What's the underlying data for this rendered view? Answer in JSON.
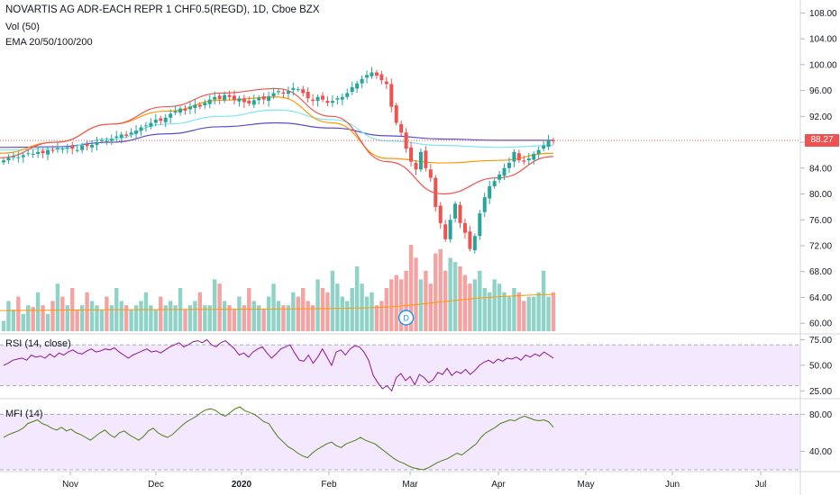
{
  "header": {
    "symbol_line": "NOVARTIS AG ADR-EACH REPR 1 CHF0.5(REGD), 1D, Cboe BZX",
    "vol_label": "Vol (50)",
    "ema_label": "EMA 20/50/100/200"
  },
  "rsi_panel": {
    "label": "RSI (14, close)"
  },
  "mfi_panel": {
    "label": "MFI (14)"
  },
  "last_price": {
    "value": "88.27",
    "color": "#ef5350"
  },
  "dividend_marker": {
    "label": "D"
  },
  "colors": {
    "up": "#26a69a",
    "down": "#ef5350",
    "vol_up": "#8fd3c8",
    "vol_down": "#f4a3a3",
    "ema20": "#ef5350",
    "ema50": "#ff9800",
    "ema100": "#7ee6f5",
    "ema200": "#5c4bc9",
    "rsi": "#8e1599",
    "mfi": "#4f7d16",
    "band_fill": "#f3e8fd",
    "vol_ma": "#ff9800"
  },
  "chart_data": [
    {
      "type": "candlestick",
      "title": "NOVARTIS AG ADR-EACH REPR 1 CHF0.5(REGD), 1D, Cboe BZX",
      "x_labels": [
        "Nov",
        "Dec",
        "2020",
        "Feb",
        "Mar",
        "Apr",
        "May",
        "Jun",
        "Jul"
      ],
      "y_ticks": [
        "108.00",
        "104.00",
        "100.00",
        "96.00",
        "92.00",
        "88.00",
        "84.00",
        "80.00",
        "76.00",
        "72.00",
        "68.00",
        "64.00",
        "60.00"
      ],
      "ylim": [
        58.5,
        110
      ],
      "last_close": 88.27,
      "closes": [
        85.2,
        85.6,
        85.8,
        85.7,
        86.0,
        86.3,
        86.2,
        86.5,
        86.3,
        86.8,
        86.7,
        87.1,
        87.0,
        87.2,
        87.0,
        86.8,
        87.5,
        87.4,
        87.6,
        88.0,
        88.3,
        88.2,
        88.5,
        88.9,
        89.2,
        89.0,
        89.5,
        89.8,
        90.3,
        90.6,
        91.0,
        91.5,
        91.3,
        91.8,
        92.4,
        92.8,
        93.2,
        92.9,
        93.5,
        93.8,
        93.5,
        94.1,
        94.6,
        95.0,
        94.7,
        95.3,
        95.0,
        94.5,
        94.8,
        94.2,
        94.0,
        94.5,
        94.9,
        94.6,
        95.1,
        95.6,
        95.9,
        95.5,
        95.9,
        96.4,
        96.2,
        95.6,
        94.8,
        94.4,
        95.0,
        94.6,
        94.1,
        94.4,
        94.8,
        95.0,
        95.6,
        96.5,
        97.1,
        97.8,
        98.4,
        98.8,
        98.3,
        97.6,
        97.0,
        93.5,
        91.0,
        89.5,
        87.0,
        85.0,
        83.8,
        86.5,
        84.0,
        82.5,
        78.0,
        75.5,
        73.0,
        76.0,
        78.5,
        75.5,
        74.0,
        71.5,
        73.5,
        77.0,
        79.5,
        81.2,
        82.0,
        83.0,
        84.0,
        84.8,
        86.5,
        85.2,
        85.0,
        85.5,
        86.2,
        86.8,
        87.5,
        88.3,
        88.27
      ],
      "ema20": [
        85.6,
        88.0,
        90.8,
        93.5,
        95.6,
        96.3,
        92.0,
        85.0,
        80.0,
        82.5,
        85.8
      ],
      "ema50": [
        86.3,
        88.0,
        90.8,
        92.8,
        94.5,
        95.0,
        91.0,
        85.5,
        84.8,
        85.2,
        86.3
      ],
      "ema100": [
        86.8,
        87.0,
        88.5,
        90.8,
        92.0,
        93.0,
        91.5,
        88.2,
        87.5,
        87.2,
        87.5
      ],
      "ema200": [
        87.2,
        87.3,
        88.0,
        89.3,
        90.4,
        91.0,
        90.2,
        89.0,
        88.5,
        88.3,
        88.3
      ],
      "volume_relative": [
        0.12,
        0.35,
        0.25,
        0.4,
        0.2,
        0.3,
        0.28,
        0.45,
        0.3,
        0.2,
        0.35,
        0.55,
        0.4,
        0.3,
        0.5,
        0.25,
        0.3,
        0.45,
        0.35,
        0.3,
        0.25,
        0.4,
        0.3,
        0.5,
        0.35,
        0.3,
        0.25,
        0.3,
        0.35,
        0.45,
        0.3,
        0.25,
        0.4,
        0.3,
        0.35,
        0.3,
        0.5,
        0.25,
        0.3,
        0.35,
        0.45,
        0.3,
        0.3,
        0.6,
        0.55,
        0.35,
        0.3,
        0.25,
        0.4,
        0.3,
        0.5,
        0.35,
        0.3,
        0.25,
        0.4,
        0.55,
        0.35,
        0.3,
        0.3,
        0.45,
        0.4,
        0.5,
        0.35,
        0.3,
        0.6,
        0.5,
        0.45,
        0.7,
        0.55,
        0.4,
        0.35,
        0.5,
        0.75,
        0.55,
        0.4,
        0.45,
        0.3,
        0.35,
        0.5,
        0.6,
        0.65,
        0.6,
        0.7,
        1.0,
        0.85,
        0.6,
        0.7,
        0.55,
        0.9,
        0.95,
        0.7,
        0.85,
        0.8,
        0.75,
        0.65,
        0.55,
        0.6,
        0.7,
        0.5,
        0.45,
        0.6,
        0.55,
        0.45,
        0.4,
        0.5,
        0.45,
        0.35,
        0.4,
        0.4,
        0.45,
        0.7,
        0.4,
        0.45
      ],
      "volume_ma_level": 0.28
    },
    {
      "type": "line",
      "title": "RSI (14, close)",
      "y_ticks": [
        "75.00",
        "50.00",
        "25.00"
      ],
      "ylim": [
        20,
        78
      ],
      "band": [
        30,
        70
      ],
      "values": [
        50,
        52,
        55,
        56,
        57,
        55,
        60,
        58,
        59,
        57,
        61,
        58,
        62,
        60,
        63,
        65,
        62,
        61,
        64,
        66,
        63,
        64,
        66,
        65,
        67,
        63,
        60,
        57,
        60,
        62,
        64,
        66,
        63,
        64,
        62,
        65,
        68,
        70,
        72,
        68,
        70,
        73,
        74,
        72,
        75,
        70,
        68,
        72,
        74,
        70,
        66,
        60,
        62,
        58,
        63,
        66,
        68,
        62,
        57,
        61,
        66,
        68,
        70,
        62,
        55,
        54,
        60,
        52,
        58,
        66,
        58,
        50,
        63,
        65,
        60,
        66,
        69,
        68,
        63,
        55,
        40,
        33,
        27,
        30,
        25,
        38,
        42,
        35,
        39,
        31,
        41,
        38,
        33,
        36,
        43,
        41,
        47,
        40,
        44,
        42,
        46,
        41,
        45,
        50,
        53,
        55,
        52,
        56,
        54,
        57,
        56,
        58,
        55,
        60,
        58,
        61,
        59,
        63,
        60,
        57
      ]
    },
    {
      "type": "line",
      "title": "MFI (14)",
      "y_ticks": [
        "80.00",
        "40.00"
      ],
      "ylim": [
        20,
        92
      ],
      "band": [
        20,
        80
      ],
      "values": [
        55,
        58,
        60,
        62,
        65,
        70,
        72,
        74,
        70,
        68,
        65,
        63,
        66,
        62,
        64,
        60,
        58,
        55,
        52,
        56,
        60,
        63,
        58,
        55,
        60,
        62,
        58,
        55,
        52,
        56,
        62,
        65,
        60,
        57,
        55,
        58,
        63,
        68,
        72,
        75,
        78,
        82,
        85,
        86,
        84,
        80,
        78,
        82,
        86,
        88,
        84,
        82,
        80,
        76,
        72,
        70,
        62,
        55,
        50,
        45,
        42,
        38,
        35,
        33,
        38,
        42,
        45,
        48,
        50,
        46,
        44,
        48,
        50,
        52,
        55,
        52,
        50,
        48,
        44,
        40,
        36,
        32,
        29,
        27,
        24,
        22,
        21,
        20,
        22,
        25,
        28,
        30,
        32,
        35,
        38,
        36,
        40,
        44,
        48,
        55,
        60,
        63,
        66,
        70,
        72,
        74,
        73,
        76,
        78,
        76,
        74,
        73,
        74,
        72,
        66
      ]
    }
  ]
}
